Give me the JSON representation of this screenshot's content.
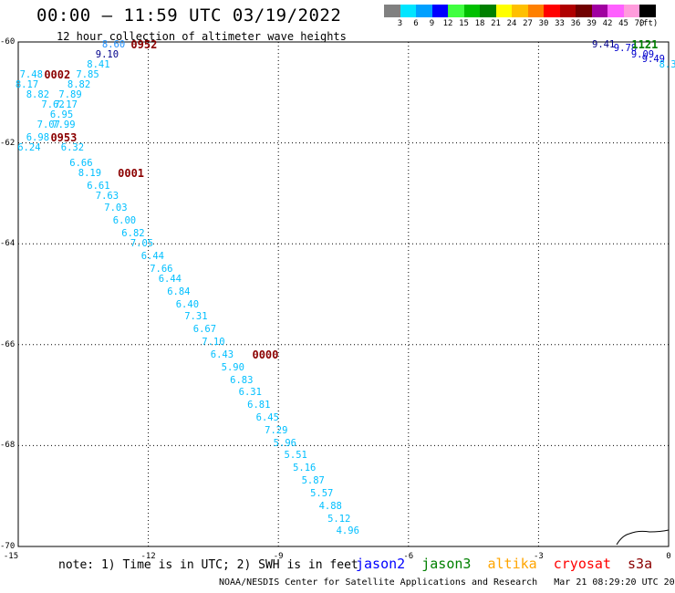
{
  "header": {
    "title": "00:00 – 11:59 UTC 03/19/2022",
    "subtitle": "12 hour collection of altimeter wave heights"
  },
  "legend": {
    "colors": [
      "#808080",
      "#00e5ff",
      "#00a0ff",
      "#0000ff",
      "#40ff40",
      "#00c000",
      "#008000",
      "#ffff00",
      "#ffc000",
      "#ff8000",
      "#ff0000",
      "#b00000",
      "#700000",
      "#a000a0",
      "#ff60ff",
      "#ff9cdc",
      "#000000"
    ],
    "labels": [
      "3",
      "6",
      "9",
      "12",
      "15",
      "18",
      "21",
      "24",
      "27",
      "30",
      "33",
      "36",
      "39",
      "42",
      "45",
      "70"
    ],
    "unit": "(ft)"
  },
  "axes": {
    "y_ticks": [
      "-60",
      "-62",
      "-64",
      "-66",
      "-68",
      "-70"
    ],
    "x_ticks": [
      "-15",
      "-12",
      "-9",
      "-6",
      "-3",
      "0"
    ]
  },
  "map": {
    "lon_range": [
      -15,
      0
    ],
    "lat_range": [
      -70,
      -60
    ],
    "wave_color": "#00bfff",
    "time_color": "#8b0000",
    "wave_points": [
      {
        "text": "8.60",
        "lat": -60.05,
        "lon": -12.8,
        "color": "#1e90ff"
      },
      {
        "text": "9.10",
        "lat": -60.25,
        "lon": -12.95,
        "color": "#00008b"
      },
      {
        "text": "8.41",
        "lat": -60.45,
        "lon": -13.15
      },
      {
        "text": "7.48",
        "lat": -60.65,
        "lon": -14.7
      },
      {
        "text": "7.85",
        "lat": -60.65,
        "lon": -13.4
      },
      {
        "text": "8.17",
        "lat": -60.85,
        "lon": -14.8
      },
      {
        "text": "8.82",
        "lat": -60.85,
        "lon": -13.6
      },
      {
        "text": "8.82",
        "lat": -61.05,
        "lon": -14.55
      },
      {
        "text": "7.89",
        "lat": -61.05,
        "lon": -13.8
      },
      {
        "text": "7.62",
        "lat": -61.25,
        "lon": -14.2
      },
      {
        "text": "7.17",
        "lat": -61.25,
        "lon": -13.9
      },
      {
        "text": "6.95",
        "lat": -61.45,
        "lon": -14.0
      },
      {
        "text": "7.07",
        "lat": -61.65,
        "lon": -14.3
      },
      {
        "text": "7.99",
        "lat": -61.65,
        "lon": -13.95
      },
      {
        "text": "6.98",
        "lat": -61.9,
        "lon": -14.55
      },
      {
        "text": "6.24",
        "lat": -62.1,
        "lon": -14.75
      },
      {
        "text": "6.32",
        "lat": -62.1,
        "lon": -13.75
      },
      {
        "text": "6.66",
        "lat": -62.4,
        "lon": -13.55
      },
      {
        "text": "8.19",
        "lat": -62.6,
        "lon": -13.35
      },
      {
        "text": "6.61",
        "lat": -62.85,
        "lon": -13.15
      },
      {
        "text": "7.63",
        "lat": -63.05,
        "lon": -12.95
      },
      {
        "text": "7.03",
        "lat": -63.3,
        "lon": -12.75
      },
      {
        "text": "6.00",
        "lat": -63.55,
        "lon": -12.55
      },
      {
        "text": "6.82",
        "lat": -63.8,
        "lon": -12.35
      },
      {
        "text": "7.05",
        "lat": -64.0,
        "lon": -12.15
      },
      {
        "text": "6.44",
        "lat": -64.25,
        "lon": -11.9
      },
      {
        "text": "7.66",
        "lat": -64.5,
        "lon": -11.7
      },
      {
        "text": "6.44",
        "lat": -64.7,
        "lon": -11.5
      },
      {
        "text": "6.84",
        "lat": -64.95,
        "lon": -11.3
      },
      {
        "text": "6.40",
        "lat": -65.2,
        "lon": -11.1
      },
      {
        "text": "7.31",
        "lat": -65.45,
        "lon": -10.9
      },
      {
        "text": "6.67",
        "lat": -65.7,
        "lon": -10.7
      },
      {
        "text": "7.10",
        "lat": -65.95,
        "lon": -10.5
      },
      {
        "text": "6.43",
        "lat": -66.2,
        "lon": -10.3
      },
      {
        "text": "5.90",
        "lat": -66.45,
        "lon": -10.05
      },
      {
        "text": "6.83",
        "lat": -66.7,
        "lon": -9.85
      },
      {
        "text": "6.31",
        "lat": -66.95,
        "lon": -9.65
      },
      {
        "text": "6.81",
        "lat": -67.2,
        "lon": -9.45
      },
      {
        "text": "6.45",
        "lat": -67.45,
        "lon": -9.25
      },
      {
        "text": "7.29",
        "lat": -67.7,
        "lon": -9.05
      },
      {
        "text": "5.96",
        "lat": -67.95,
        "lon": -8.85
      },
      {
        "text": "5.51",
        "lat": -68.2,
        "lon": -8.6
      },
      {
        "text": "5.16",
        "lat": -68.45,
        "lon": -8.4
      },
      {
        "text": "5.87",
        "lat": -68.7,
        "lon": -8.2
      },
      {
        "text": "5.57",
        "lat": -68.95,
        "lon": -8.0
      },
      {
        "text": "4.88",
        "lat": -69.2,
        "lon": -7.8
      },
      {
        "text": "5.12",
        "lat": -69.45,
        "lon": -7.6
      },
      {
        "text": "4.96",
        "lat": -69.7,
        "lon": -7.4
      },
      {
        "text": "9.41",
        "lat": -60.05,
        "lon": -1.5,
        "color": "#00008b"
      },
      {
        "text": "9.78",
        "lat": -60.12,
        "lon": -1.0,
        "color": "#0000cd"
      },
      {
        "text": "9.09",
        "lat": -60.25,
        "lon": -0.6,
        "color": "#0000cd"
      },
      {
        "text": "9.49",
        "lat": -60.35,
        "lon": -0.35,
        "color": "#0000cd"
      },
      {
        "text": "8.3",
        "lat": -60.45,
        "lon": -0.02,
        "color": "#00bfff"
      }
    ],
    "time_marks": [
      {
        "text": "0952",
        "lat": -60.05,
        "lon": -12.1,
        "color": "#8b0000"
      },
      {
        "text": "0002",
        "lat": -60.65,
        "lon": -14.1,
        "color": "#8b0000"
      },
      {
        "text": "0953",
        "lat": -61.9,
        "lon": -13.95,
        "color": "#8b0000"
      },
      {
        "text": "0001",
        "lat": -62.6,
        "lon": -12.4,
        "color": "#8b0000"
      },
      {
        "text": "0000",
        "lat": -66.2,
        "lon": -9.3,
        "color": "#8b0000"
      },
      {
        "text": "1121",
        "lat": -60.05,
        "lon": -0.55,
        "color": "#008000"
      }
    ]
  },
  "note": "note: 1) Time is in UTC; 2) SWH is in feet",
  "satellites": [
    {
      "name": "jason2",
      "color": "#0000ff"
    },
    {
      "name": "jason3",
      "color": "#008000"
    },
    {
      "name": "altika",
      "color": "#ffa500"
    },
    {
      "name": "cryosat",
      "color": "#ff0000"
    },
    {
      "name": "s3a",
      "color": "#8b0000"
    }
  ],
  "footer": "NOAA/NESDIS Center for Satellite Applications and Research   Mar 21 08:29:20 UTC 2022"
}
